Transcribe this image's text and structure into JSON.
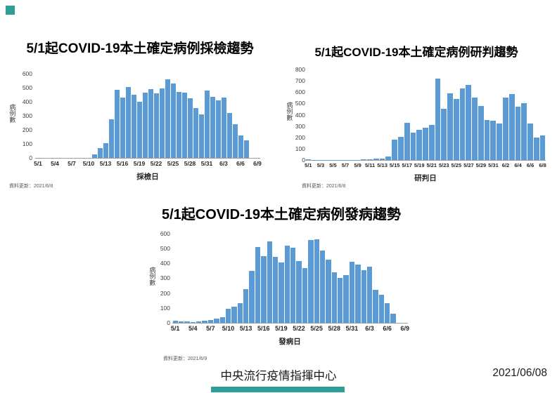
{
  "page": {
    "background": "#FFFFFF",
    "accent_color": "#2E9E96",
    "bar_color": "#5B9BD5",
    "footer": {
      "organization": "中央流行疫情指揮中心",
      "date": "2021/06/08"
    }
  },
  "chart_data": [
    {
      "type": "bar",
      "title": "5/1起COVID-19本土確定病例採檢趨勢",
      "xlabel": "採檢日",
      "ylabel": "病例數",
      "source_note": "資料更新：2021/6/8",
      "ylim": [
        0,
        600
      ],
      "ytick_step": 100,
      "grid": false,
      "legend": "none",
      "x": [
        "5/1",
        "5/2",
        "5/3",
        "5/4",
        "5/5",
        "5/6",
        "5/7",
        "5/8",
        "5/9",
        "5/10",
        "5/11",
        "5/12",
        "5/13",
        "5/14",
        "5/15",
        "5/16",
        "5/17",
        "5/18",
        "5/19",
        "5/20",
        "5/21",
        "5/22",
        "5/23",
        "5/24",
        "5/25",
        "5/26",
        "5/27",
        "5/28",
        "5/29",
        "5/30",
        "5/31",
        "6/1",
        "6/2",
        "6/3",
        "6/4",
        "6/5",
        "6/6",
        "6/7",
        "6/8",
        "6/9"
      ],
      "xtick_labels": [
        "5/1",
        "5/4",
        "5/7",
        "5/10",
        "5/13",
        "5/16",
        "5/19",
        "5/22",
        "5/25",
        "5/28",
        "5/31",
        "6/3",
        "6/6",
        "6/9"
      ],
      "values": [
        0,
        0,
        0,
        0,
        0,
        0,
        0,
        0,
        0,
        0,
        25,
        70,
        105,
        275,
        485,
        430,
        505,
        450,
        400,
        465,
        490,
        460,
        495,
        560,
        530,
        470,
        465,
        425,
        355,
        310,
        480,
        435,
        410,
        430,
        320,
        240,
        160,
        125,
        0,
        0
      ]
    },
    {
      "type": "bar",
      "title": "5/1起COVID-19本土確定病例研判趨勢",
      "xlabel": "研判日",
      "ylabel": "病例數",
      "source_note": "資料更新：2021/6/8",
      "ylim": [
        0,
        800
      ],
      "ytick_step": 100,
      "grid": false,
      "legend": "none",
      "x": [
        "5/1",
        "5/2",
        "5/3",
        "5/4",
        "5/5",
        "5/6",
        "5/7",
        "5/8",
        "5/9",
        "5/10",
        "5/11",
        "5/12",
        "5/13",
        "5/14",
        "5/15",
        "5/16",
        "5/17",
        "5/18",
        "5/19",
        "5/20",
        "5/21",
        "5/22",
        "5/23",
        "5/24",
        "5/25",
        "5/26",
        "5/27",
        "5/28",
        "5/29",
        "5/30",
        "5/31",
        "6/1",
        "6/2",
        "6/3",
        "6/4",
        "6/5",
        "6/6",
        "6/7",
        "6/8"
      ],
      "xtick_labels": [
        "5/1",
        "5/3",
        "5/5",
        "5/7",
        "5/9",
        "5/11",
        "5/13",
        "5/15",
        "5/17",
        "5/19",
        "5/21",
        "5/23",
        "5/25",
        "5/27",
        "5/29",
        "5/31",
        "6/2",
        "6/4",
        "6/6",
        "6/8"
      ],
      "values": [
        5,
        2,
        1,
        1,
        1,
        1,
        2,
        2,
        3,
        5,
        8,
        15,
        10,
        30,
        180,
        205,
        330,
        240,
        265,
        285,
        310,
        720,
        450,
        590,
        540,
        635,
        665,
        555,
        480,
        355,
        345,
        325,
        550,
        580,
        470,
        505,
        320,
        200,
        220
      ]
    },
    {
      "type": "bar",
      "title": "5/1起COVID-19本土確定病例發病趨勢",
      "xlabel": "發病日",
      "ylabel": "病例數",
      "source_note": "資料更新：2021/6/9",
      "ylim": [
        0,
        600
      ],
      "ytick_step": 100,
      "grid": false,
      "legend": "none",
      "x": [
        "5/1",
        "5/2",
        "5/3",
        "5/4",
        "5/5",
        "5/6",
        "5/7",
        "5/8",
        "5/9",
        "5/10",
        "5/11",
        "5/12",
        "5/13",
        "5/14",
        "5/15",
        "5/16",
        "5/17",
        "5/18",
        "5/19",
        "5/20",
        "5/21",
        "5/22",
        "5/23",
        "5/24",
        "5/25",
        "5/26",
        "5/27",
        "5/28",
        "5/29",
        "5/30",
        "5/31",
        "6/1",
        "6/2",
        "6/3",
        "6/4",
        "6/5",
        "6/6",
        "6/7",
        "6/8",
        "6/9"
      ],
      "xtick_labels": [
        "5/1",
        "5/4",
        "5/7",
        "5/10",
        "5/13",
        "5/16",
        "5/19",
        "5/22",
        "5/25",
        "5/28",
        "5/31",
        "6/3",
        "6/6",
        "6/9"
      ],
      "values": [
        12,
        8,
        9,
        3,
        10,
        15,
        18,
        30,
        38,
        95,
        108,
        133,
        228,
        350,
        508,
        450,
        548,
        445,
        405,
        518,
        505,
        418,
        370,
        556,
        562,
        485,
        425,
        340,
        302,
        320,
        410,
        390,
        355,
        380,
        220,
        190,
        133,
        60,
        0,
        0
      ]
    }
  ]
}
